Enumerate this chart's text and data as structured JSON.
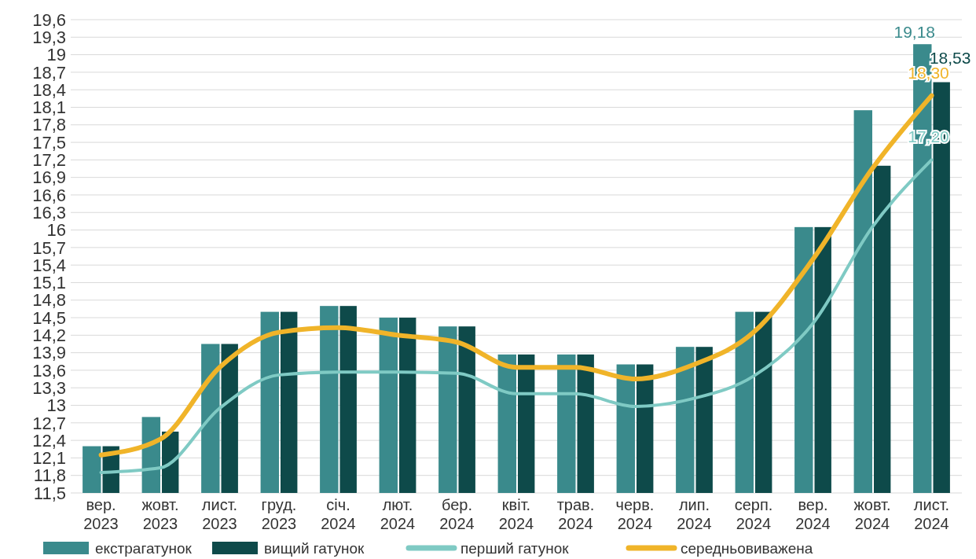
{
  "chart_data": {
    "type": "bar",
    "categories": [
      "вер. 2023",
      "жовт. 2023",
      "лист. 2023",
      "груд. 2023",
      "січ. 2024",
      "лют. 2024",
      "бер. 2024",
      "квіт. 2024",
      "трав. 2024",
      "черв. 2024",
      "лип. 2024",
      "серп. 2024",
      "вер. 2024",
      "жовт. 2024",
      "лист. 2024"
    ],
    "series": [
      {
        "name": "екстрагатунок",
        "color": "#3a8a8c",
        "values": [
          12.3,
          12.8,
          14.05,
          14.6,
          14.7,
          14.5,
          14.35,
          13.87,
          13.87,
          13.7,
          14.0,
          14.6,
          16.05,
          18.05,
          19.18
        ],
        "value_labels": [
          null,
          null,
          null,
          null,
          null,
          null,
          null,
          null,
          null,
          null,
          null,
          null,
          null,
          null,
          "19,18"
        ]
      },
      {
        "name": "вищий гатунок",
        "color": "#0e4a4a",
        "values": [
          12.3,
          12.55,
          14.05,
          14.6,
          14.7,
          14.5,
          14.35,
          13.87,
          13.87,
          13.7,
          14.0,
          14.6,
          16.05,
          17.1,
          18.53
        ],
        "value_labels": [
          null,
          null,
          null,
          null,
          null,
          null,
          null,
          null,
          null,
          null,
          null,
          null,
          null,
          null,
          "18,53"
        ]
      },
      {
        "name": "перший гатунок",
        "type": "line",
        "color": "#7fcac4",
        "values": [
          11.85,
          11.93,
          12.95,
          13.52,
          13.57,
          13.57,
          13.55,
          13.2,
          13.2,
          12.98,
          13.12,
          13.5,
          14.4,
          16.05,
          17.2
        ],
        "value_labels": [
          null,
          null,
          null,
          null,
          null,
          null,
          null,
          null,
          null,
          null,
          null,
          null,
          null,
          null,
          "17,20"
        ]
      },
      {
        "name": "середньовиважена",
        "type": "line",
        "color": "#f0b429",
        "values": [
          12.15,
          12.42,
          13.65,
          14.25,
          14.33,
          14.2,
          14.08,
          13.65,
          13.65,
          13.45,
          13.7,
          14.25,
          15.5,
          17.05,
          18.3
        ],
        "value_labels": [
          null,
          null,
          null,
          null,
          null,
          null,
          null,
          null,
          null,
          null,
          null,
          null,
          null,
          null,
          "18,30"
        ]
      }
    ],
    "ylim": [
      11.5,
      19.6
    ],
    "yticks": [
      {
        "value": 11.5,
        "label": "11,5"
      },
      {
        "value": 11.8,
        "label": "11,8"
      },
      {
        "value": 12.1,
        "label": "12,1"
      },
      {
        "value": 12.4,
        "label": "12,4"
      },
      {
        "value": 12.7,
        "label": "12,7"
      },
      13,
      {
        "value": 13.3,
        "label": "13,3"
      },
      {
        "value": 13.6,
        "label": "13,6"
      },
      {
        "value": 13.9,
        "label": "13,9"
      },
      {
        "value": 14.2,
        "label": "14,2"
      },
      {
        "value": 14.5,
        "label": "14,5"
      },
      {
        "value": 14.8,
        "label": "14,8"
      },
      {
        "value": 15.1,
        "label": "15,1"
      },
      {
        "value": 15.4,
        "label": "15,4"
      },
      {
        "value": 15.7,
        "label": "15,7"
      },
      16,
      {
        "value": 16.3,
        "label": "16,3"
      },
      {
        "value": 16.6,
        "label": "16,6"
      },
      {
        "value": 16.9,
        "label": "16,9"
      },
      {
        "value": 17.2,
        "label": "17,2"
      },
      {
        "value": 17.5,
        "label": "17,5"
      },
      {
        "value": 17.8,
        "label": "17,8"
      },
      {
        "value": 18.1,
        "label": "18,1"
      },
      {
        "value": 18.4,
        "label": "18,4"
      },
      {
        "value": 18.7,
        "label": "18,7"
      },
      19,
      {
        "value": 19.3,
        "label": "19,3"
      },
      {
        "value": 19.6,
        "label": "19,6"
      }
    ],
    "grid": "y",
    "legend": "bottom",
    "line_style": "solid",
    "marker": "none"
  }
}
